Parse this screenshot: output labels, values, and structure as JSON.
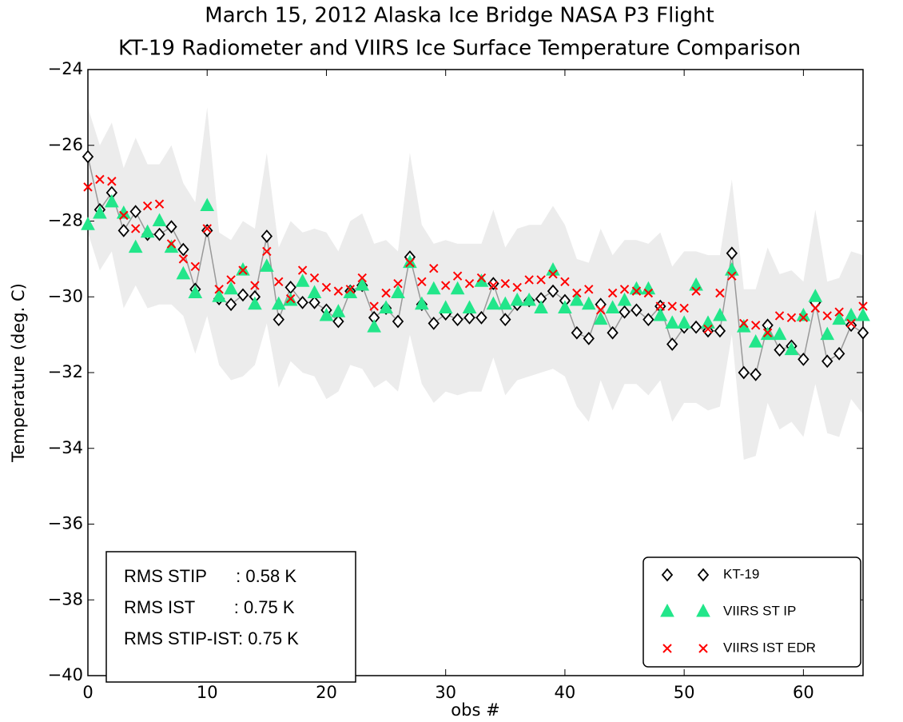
{
  "chart_data": {
    "type": "scatter",
    "title": "March 15, 2012 Alaska Ice Bridge NASA P3 Flight",
    "subtitle": "KT-19 Radiometer and VIIRS Ice Surface Temperature Comparison",
    "x_label": "obs #",
    "y_label": "Temperature (deg. C)",
    "xlim": [
      0,
      65
    ],
    "ylim": [
      -40,
      -24
    ],
    "xticks": [
      0,
      10,
      20,
      30,
      40,
      50,
      60
    ],
    "yticks": [
      {
        "value": -40,
        "label": "−40"
      },
      {
        "value": -38,
        "label": "−38"
      },
      {
        "value": -36,
        "label": "−36"
      },
      {
        "value": -34,
        "label": "−34"
      },
      {
        "value": -32,
        "label": "−32"
      },
      {
        "value": -30,
        "label": "−30"
      },
      {
        "value": -28,
        "label": "−28"
      },
      {
        "value": -26,
        "label": "−26"
      },
      {
        "value": -24,
        "label": "−24"
      }
    ],
    "legend": "lower right",
    "annotations": [
      "RMS STIP      : 0.58 K",
      "RMS IST        : 0.75 K",
      "RMS STIP-IST: 0.75 K"
    ],
    "x": [
      0,
      1,
      2,
      3,
      4,
      5,
      6,
      7,
      8,
      9,
      10,
      11,
      12,
      13,
      14,
      15,
      16,
      17,
      18,
      19,
      20,
      21,
      22,
      23,
      24,
      25,
      26,
      27,
      28,
      29,
      30,
      31,
      32,
      33,
      34,
      35,
      36,
      37,
      38,
      39,
      40,
      41,
      42,
      43,
      44,
      45,
      46,
      47,
      48,
      49,
      50,
      51,
      52,
      53,
      54,
      55,
      56,
      57,
      58,
      59,
      60,
      61,
      62,
      63,
      64,
      65
    ],
    "band": {
      "color": "#ececec",
      "upper": [
        -25.0,
        -26.0,
        -25.4,
        -26.6,
        -25.8,
        -26.5,
        -26.5,
        -26.0,
        -27.0,
        -27.5,
        -25.0,
        -28.3,
        -28.5,
        -28.0,
        -28.2,
        -26.2,
        -28.7,
        -28.0,
        -28.3,
        -28.2,
        -28.3,
        -28.8,
        -28.0,
        -27.8,
        -28.6,
        -28.5,
        -28.8,
        -26.2,
        -28.1,
        -28.6,
        -28.5,
        -28.6,
        -28.6,
        -28.6,
        -27.7,
        -28.7,
        -28.2,
        -28.1,
        -28.1,
        -27.6,
        -28.1,
        -29.0,
        -29.1,
        -28.2,
        -28.9,
        -28.5,
        -28.5,
        -28.6,
        -28.3,
        -29.2,
        -28.8,
        -28.8,
        -28.9,
        -28.9,
        -26.9,
        -29.8,
        -29.8,
        -28.7,
        -29.4,
        -29.3,
        -29.6,
        -27.7,
        -29.6,
        -29.5,
        -28.8,
        -28.9
      ],
      "lower": [
        -28.3,
        -29.3,
        -28.8,
        -30.3,
        -29.7,
        -30.3,
        -30.2,
        -30.2,
        -30.5,
        -31.5,
        -30.5,
        -31.8,
        -32.2,
        -32.1,
        -31.8,
        -30.7,
        -32.4,
        -31.7,
        -32.0,
        -32.1,
        -32.7,
        -32.5,
        -31.8,
        -31.9,
        -32.4,
        -32.2,
        -32.5,
        -31.0,
        -32.3,
        -32.8,
        -32.5,
        -32.6,
        -32.5,
        -32.5,
        -31.6,
        -32.6,
        -32.2,
        -32.1,
        -32.0,
        -31.9,
        -32.1,
        -32.9,
        -33.3,
        -32.2,
        -33.0,
        -32.3,
        -32.3,
        -32.6,
        -32.2,
        -33.3,
        -32.8,
        -32.8,
        -33.0,
        -32.9,
        -31.0,
        -34.3,
        -34.2,
        -32.8,
        -33.5,
        -33.3,
        -33.7,
        -32.3,
        -33.6,
        -33.7,
        -32.7,
        -33.1
      ]
    },
    "series": [
      {
        "name": "KT-19",
        "color": "#000000",
        "marker": "diamond",
        "line_color": "#999999",
        "values": [
          -26.3,
          -27.7,
          -27.25,
          -28.25,
          -27.75,
          -28.35,
          -28.35,
          -28.15,
          -28.75,
          -29.8,
          -28.25,
          -30.05,
          -30.2,
          -29.95,
          -30.0,
          -28.4,
          -30.6,
          -29.75,
          -30.15,
          -30.15,
          -30.35,
          -30.65,
          -29.85,
          -29.7,
          -30.55,
          -30.3,
          -30.65,
          -28.95,
          -30.2,
          -30.7,
          -30.45,
          -30.6,
          -30.55,
          -30.55,
          -29.65,
          -30.6,
          -30.2,
          -30.1,
          -30.05,
          -29.85,
          -30.1,
          -30.95,
          -31.1,
          -30.2,
          -30.95,
          -30.4,
          -30.35,
          -30.6,
          -30.25,
          -31.25,
          -30.8,
          -30.8,
          -30.9,
          -30.9,
          -28.85,
          -32.0,
          -32.05,
          -30.75,
          -31.4,
          -31.3,
          -31.65,
          -30.15,
          -31.7,
          -31.5,
          -30.75,
          -30.95
        ]
      },
      {
        "name": "VIIRS ST IP",
        "color": "#22e68a",
        "marker": "triangle",
        "values": [
          -28.1,
          -27.8,
          -27.5,
          -27.8,
          -28.7,
          -28.3,
          -28.0,
          -28.7,
          -29.4,
          -29.9,
          -27.6,
          -30.0,
          -29.8,
          -29.3,
          -30.2,
          -29.2,
          -30.2,
          -30.1,
          -29.6,
          -29.9,
          -30.5,
          -30.4,
          -29.9,
          -29.7,
          -30.8,
          -30.3,
          -29.9,
          -29.1,
          -30.2,
          -29.8,
          -30.3,
          -29.8,
          -30.3,
          -29.6,
          -30.2,
          -30.2,
          -30.1,
          -30.1,
          -30.3,
          -29.3,
          -30.3,
          -30.1,
          -30.2,
          -30.6,
          -30.3,
          -30.1,
          -29.8,
          -29.8,
          -30.5,
          -30.7,
          -30.7,
          -29.7,
          -30.7,
          -30.5,
          -29.3,
          -30.8,
          -31.2,
          -31.0,
          -31.0,
          -31.4,
          -30.5,
          -30.0,
          -31.0,
          -30.6,
          -30.5,
          -30.5
        ]
      },
      {
        "name": "VIIRS IST EDR",
        "color": "#ff0000",
        "marker": "x",
        "values": [
          -27.1,
          -26.9,
          -26.95,
          -27.85,
          -28.2,
          -27.6,
          -27.55,
          -28.6,
          -29.0,
          -29.2,
          -28.2,
          -29.8,
          -29.55,
          -29.3,
          -29.7,
          -28.8,
          -29.6,
          -30.05,
          -29.3,
          -29.5,
          -29.75,
          -29.85,
          -29.8,
          -29.5,
          -30.25,
          -29.9,
          -29.65,
          -29.1,
          -29.6,
          -29.25,
          -29.7,
          -29.45,
          -29.65,
          -29.5,
          -29.7,
          -29.65,
          -29.75,
          -29.55,
          -29.55,
          -29.4,
          -29.6,
          -29.9,
          -29.8,
          -30.35,
          -29.9,
          -29.8,
          -29.85,
          -29.9,
          -30.25,
          -30.25,
          -30.3,
          -29.85,
          -30.85,
          -29.9,
          -29.45,
          -30.7,
          -30.75,
          -30.95,
          -30.5,
          -30.55,
          -30.55,
          -30.3,
          -30.5,
          -30.4,
          -30.7,
          -30.25
        ]
      }
    ]
  }
}
